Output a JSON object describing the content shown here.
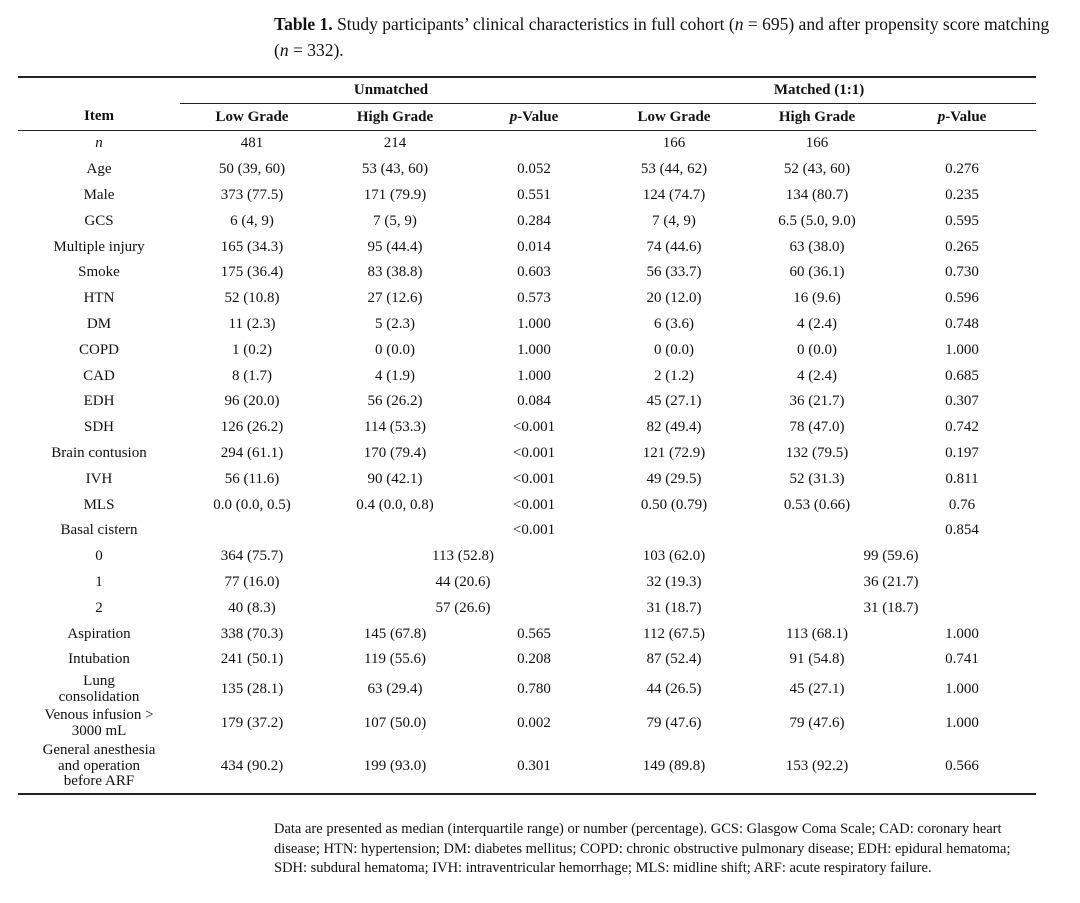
{
  "caption": {
    "label": "Table 1.",
    "text_before_n1": " Study participants’ clinical characteristics in full cohort (",
    "n_symbol": "n",
    "text_n1": " = 695) and after propensity score matching (",
    "text_n2": " = 332)."
  },
  "table": {
    "group_headers": {
      "unmatched": "Unmatched",
      "matched": "Matched (1:1)"
    },
    "columns": [
      "Item",
      "Low Grade",
      "High Grade",
      "p-Value",
      "Low Grade",
      "High Grade",
      "p-Value"
    ],
    "rows": [
      [
        "n",
        "481",
        "214",
        "",
        "166",
        "166",
        ""
      ],
      [
        "Age",
        "50 (39, 60)",
        "53 (43, 60)",
        "0.052",
        "53 (44, 62)",
        "52 (43, 60)",
        "0.276"
      ],
      [
        "Male",
        "373 (77.5)",
        "171 (79.9)",
        "0.551",
        "124 (74.7)",
        "134 (80.7)",
        "0.235"
      ],
      [
        "GCS",
        "6 (4, 9)",
        "7 (5, 9)",
        "0.284",
        "7 (4, 9)",
        "6.5 (5.0, 9.0)",
        "0.595"
      ],
      [
        "Multiple injury",
        "165 (34.3)",
        "95 (44.4)",
        "0.014",
        "74 (44.6)",
        "63 (38.0)",
        "0.265"
      ],
      [
        "Smoke",
        "175 (36.4)",
        "83 (38.8)",
        "0.603",
        "56 (33.7)",
        "60 (36.1)",
        "0.730"
      ],
      [
        "HTN",
        "52 (10.8)",
        "27 (12.6)",
        "0.573",
        "20 (12.0)",
        "16 (9.6)",
        "0.596"
      ],
      [
        "DM",
        "11 (2.3)",
        "5 (2.3)",
        "1.000",
        "6 (3.6)",
        "4 (2.4)",
        "0.748"
      ],
      [
        "COPD",
        "1 (0.2)",
        "0 (0.0)",
        "1.000",
        "0 (0.0)",
        "0 (0.0)",
        "1.000"
      ],
      [
        "CAD",
        "8 (1.7)",
        "4 (1.9)",
        "1.000",
        "2 (1.2)",
        "4 (2.4)",
        "0.685"
      ],
      [
        "EDH",
        "96 (20.0)",
        "56 (26.2)",
        "0.084",
        "45 (27.1)",
        "36 (21.7)",
        "0.307"
      ],
      [
        "SDH",
        "126 (26.2)",
        "114 (53.3)",
        "<0.001",
        "82 (49.4)",
        "78 (47.0)",
        "0.742"
      ],
      [
        "Brain contusion",
        "294 (61.1)",
        "170 (79.4)",
        "<0.001",
        "121 (72.9)",
        "132 (79.5)",
        "0.197"
      ],
      [
        "IVH",
        "56 (11.6)",
        "90 (42.1)",
        "<0.001",
        "49 (29.5)",
        "52 (31.3)",
        "0.811"
      ],
      [
        "MLS",
        "0.0 (0.0, 0.5)",
        "0.4 (0.0, 0.8)",
        "<0.001",
        "0.50 (0.79)",
        "0.53 (0.66)",
        "0.76"
      ],
      [
        "Basal cistern",
        "",
        "",
        "<0.001",
        "",
        "",
        "0.854"
      ]
    ],
    "cistern_rows": [
      [
        "0",
        "364 (75.7)",
        "113 (52.8)",
        "103 (62.0)",
        "99 (59.6)"
      ],
      [
        "1",
        "77 (16.0)",
        "44 (20.6)",
        "32 (19.3)",
        "36 (21.7)"
      ],
      [
        "2",
        "40 (8.3)",
        "57 (26.6)",
        "31 (18.7)",
        "31 (18.7)"
      ]
    ],
    "rows_after": [
      [
        "Aspiration",
        "338 (70.3)",
        "145 (67.8)",
        "0.565",
        "112 (67.5)",
        "113 (68.1)",
        "1.000"
      ],
      [
        "Intubation",
        "241 (50.1)",
        "119 (55.6)",
        "0.208",
        "87 (52.4)",
        "91 (54.8)",
        "0.741"
      ]
    ],
    "rows_two_line": [
      [
        "Lung\nconsolidation",
        "135 (28.1)",
        "63 (29.4)",
        "0.780",
        "44 (26.5)",
        "45 (27.1)",
        "1.000"
      ],
      [
        "Venous infusion >\n3000 mL",
        "179 (37.2)",
        "107 (50.0)",
        "0.002",
        "79 (47.6)",
        "79 (47.6)",
        "1.000"
      ]
    ],
    "row_three_line": [
      "General anesthesia\nand operation\nbefore ARF",
      "434 (90.2)",
      "199 (93.0)",
      "0.301",
      "149 (89.8)",
      "153 (92.2)",
      "0.566"
    ]
  },
  "footnote": "Data are presented as median (interquartile range) or number (percentage). GCS: Glasgow Coma Scale; CAD: coronary heart disease; HTN: hypertension; DM: diabetes mellitus; COPD: chronic obstructive pulmonary disease; EDH: epidural hematoma; SDH: subdural hematoma; IVH: intraventricular hemorrhage; MLS: midline shift; ARF: acute respiratory failure."
}
